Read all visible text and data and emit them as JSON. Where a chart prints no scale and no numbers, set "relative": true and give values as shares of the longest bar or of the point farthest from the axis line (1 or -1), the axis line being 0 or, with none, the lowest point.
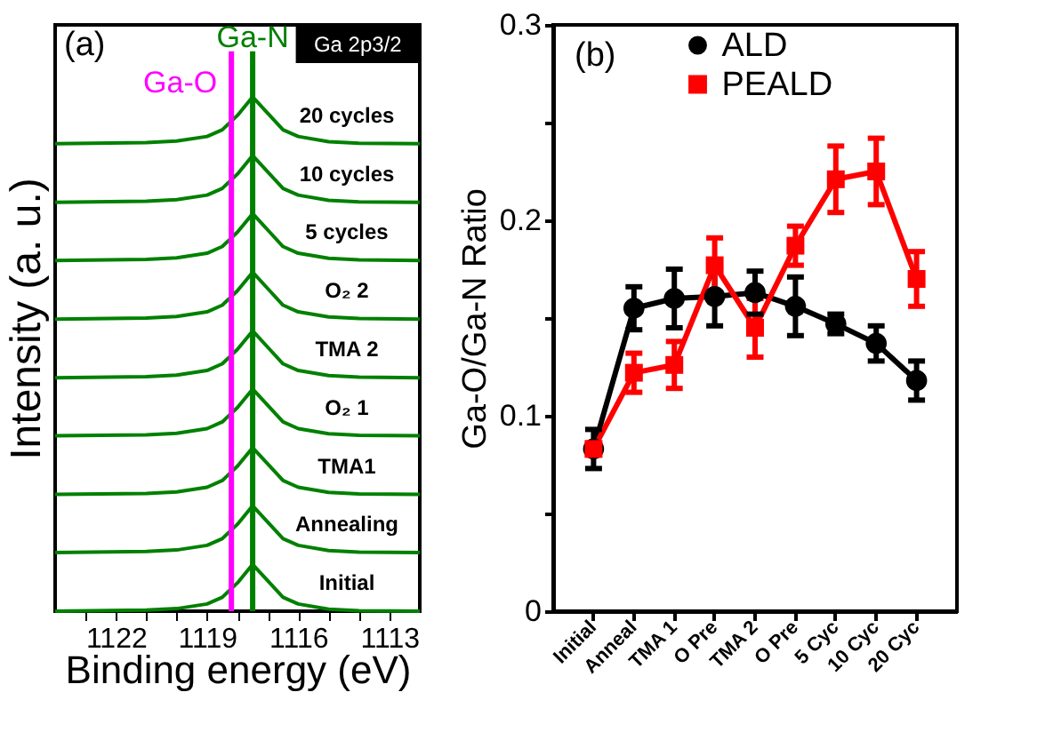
{
  "chart_data": [
    {
      "type": "line",
      "relative": true,
      "xlabel": "Binding energy (eV)",
      "ylabel": "Intensity (a. u.)",
      "xlim": [
        1124,
        1112
      ],
      "xticks": [
        {
          "value": 1123,
          "label": null
        },
        1122,
        {
          "value": 1121,
          "label": null
        },
        {
          "value": 1120,
          "label": null
        },
        1119,
        {
          "value": 1118,
          "label": null
        },
        {
          "value": 1117,
          "label": null
        },
        1116,
        {
          "value": 1115,
          "label": null
        },
        {
          "value": 1114,
          "label": null
        },
        1113
      ],
      "tick_labels": "x",
      "grid": false,
      "legend": false,
      "marker": "none",
      "line_style": "solid",
      "x": [
        1124,
        1121,
        1120,
        1119,
        1118.5,
        1118,
        1117.5,
        1117,
        1116.5,
        1116,
        1115,
        1114,
        1112
      ],
      "series": [
        {
          "name": "Initial",
          "color": "#008000",
          "values": [
            0,
            0.002,
            0.005,
            0.014,
            0.027,
            0.055,
            0.091,
            0.059,
            0.027,
            0.014,
            0.004,
            0.001,
            0
          ]
        },
        {
          "name": "Annealing",
          "color": "#008000",
          "values": [
            0.114,
            0.116,
            0.119,
            0.128,
            0.141,
            0.169,
            0.205,
            0.173,
            0.141,
            0.128,
            0.118,
            0.115,
            0.114
          ]
        },
        {
          "name": "TMA1",
          "color": "#008000",
          "values": [
            0.227,
            0.229,
            0.232,
            0.241,
            0.254,
            0.282,
            0.318,
            0.286,
            0.254,
            0.241,
            0.231,
            0.228,
            0.227
          ]
        },
        {
          "name": "O₂ 1",
          "color": "#008000",
          "values": [
            0.341,
            0.343,
            0.346,
            0.355,
            0.368,
            0.396,
            0.432,
            0.4,
            0.368,
            0.355,
            0.345,
            0.342,
            0.341
          ]
        },
        {
          "name": "TMA 2",
          "color": "#008000",
          "values": [
            0.454,
            0.456,
            0.459,
            0.468,
            0.481,
            0.509,
            0.545,
            0.513,
            0.481,
            0.468,
            0.458,
            0.455,
            0.454
          ]
        },
        {
          "name": "O₂ 2",
          "color": "#008000",
          "values": [
            0.568,
            0.57,
            0.573,
            0.582,
            0.595,
            0.623,
            0.659,
            0.627,
            0.595,
            0.582,
            0.572,
            0.569,
            0.568
          ]
        },
        {
          "name": "5 cycles",
          "color": "#008000",
          "values": [
            0.682,
            0.684,
            0.687,
            0.696,
            0.709,
            0.737,
            0.773,
            0.741,
            0.709,
            0.696,
            0.686,
            0.683,
            0.682
          ]
        },
        {
          "name": "10 cycles",
          "color": "#008000",
          "values": [
            0.795,
            0.797,
            0.8,
            0.809,
            0.822,
            0.85,
            0.886,
            0.854,
            0.822,
            0.809,
            0.799,
            0.796,
            0.795
          ]
        },
        {
          "name": "20 cycles",
          "color": "#008000",
          "values": [
            0.909,
            0.911,
            0.914,
            0.923,
            0.936,
            0.964,
            1.0,
            0.968,
            0.936,
            0.923,
            0.913,
            0.91,
            0.909
          ]
        }
      ],
      "ref_lines": [
        {
          "axis": "x",
          "value": 1117.5,
          "label": "Ga-N",
          "color": "#008000"
        },
        {
          "axis": "x",
          "value": 1118.2,
          "label": "Ga-O",
          "color": "#ff00ff"
        }
      ],
      "annotations": [
        "(a)",
        "Ga 2p3/2"
      ]
    },
    {
      "type": "line",
      "ylabel": "Ga-O/Ga-N Ratio",
      "ylim": [
        0,
        0.3
      ],
      "yticks": [
        0,
        {
          "value": 0.05,
          "label": null
        },
        0.1,
        {
          "value": 0.15,
          "label": null
        },
        0.2,
        {
          "value": 0.25,
          "label": null
        },
        0.3
      ],
      "categories": [
        "Initial",
        "Anneal",
        "TMA 1",
        "O Pre",
        "TMA 2",
        "O Pre",
        "5 Cyc",
        "10 Cyc",
        "20 Cyc"
      ],
      "grid": false,
      "legend": "top",
      "line_style": "solid",
      "series": [
        {
          "name": "ALD",
          "color": "#000000",
          "marker": "circle",
          "values": [
            0.083,
            0.155,
            0.16,
            0.161,
            0.163,
            0.156,
            0.147,
            0.137,
            0.118
          ],
          "errors": [
            0.01,
            0.011,
            0.015,
            0.015,
            0.011,
            0.015,
            0.005,
            0.009,
            0.01
          ]
        },
        {
          "name": "PEALD",
          "color": "#ff0000",
          "marker": "square",
          "values": [
            0.083,
            0.122,
            0.126,
            0.177,
            0.145,
            0.187,
            0.221,
            0.225,
            0.17
          ],
          "errors": [
            0.003,
            0.01,
            0.012,
            0.014,
            0.015,
            0.01,
            0.017,
            0.017,
            0.014
          ]
        }
      ],
      "annotations": [
        "(b)"
      ]
    }
  ]
}
